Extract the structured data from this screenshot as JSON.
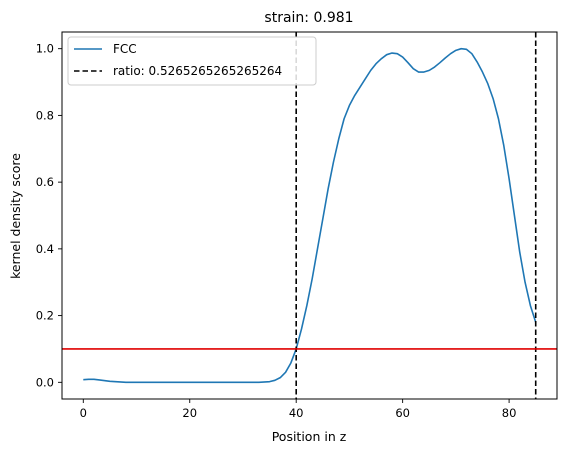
{
  "chart_data": {
    "type": "line",
    "title": "strain: 0.981",
    "xlabel": "Position in z",
    "ylabel": "kernel density score",
    "xlim": [
      -4,
      89
    ],
    "ylim": [
      -0.05,
      1.05
    ],
    "xticks": [
      0,
      20,
      40,
      60,
      80
    ],
    "yticks": [
      0.0,
      0.2,
      0.4,
      0.6,
      0.8,
      1.0
    ],
    "xtick_labels": [
      "0",
      "20",
      "40",
      "60",
      "80"
    ],
    "ytick_labels": [
      "0.0",
      "0.2",
      "0.4",
      "0.6",
      "0.8",
      "1.0"
    ],
    "grid": false,
    "legend_position": "upper-left",
    "series": [
      {
        "name": "FCC",
        "color": "#1f77b4",
        "style": "solid",
        "x": [
          0,
          1,
          2,
          3,
          5,
          8,
          10,
          15,
          20,
          25,
          30,
          33,
          35,
          36,
          37,
          38,
          39,
          40,
          41,
          42,
          43,
          44,
          45,
          46,
          47,
          48,
          49,
          50,
          51,
          52,
          53,
          54,
          55,
          56,
          57,
          58,
          59,
          60,
          61,
          62,
          63,
          64,
          65,
          66,
          67,
          68,
          69,
          70,
          71,
          72,
          73,
          74,
          75,
          76,
          77,
          78,
          79,
          80,
          81,
          82,
          83,
          84,
          85
        ],
        "y": [
          0.008,
          0.009,
          0.009,
          0.007,
          0.003,
          0.0,
          0.0,
          0.0,
          0.0,
          0.0,
          0.0,
          0.0,
          0.002,
          0.006,
          0.014,
          0.03,
          0.058,
          0.1,
          0.16,
          0.23,
          0.31,
          0.4,
          0.49,
          0.58,
          0.66,
          0.73,
          0.79,
          0.83,
          0.86,
          0.885,
          0.91,
          0.935,
          0.955,
          0.97,
          0.982,
          0.987,
          0.985,
          0.975,
          0.958,
          0.94,
          0.93,
          0.93,
          0.935,
          0.945,
          0.958,
          0.972,
          0.985,
          0.995,
          1.0,
          0.998,
          0.985,
          0.96,
          0.93,
          0.895,
          0.85,
          0.79,
          0.71,
          0.61,
          0.5,
          0.39,
          0.3,
          0.23,
          0.18
        ]
      }
    ],
    "vlines": [
      {
        "name": "ratio: 0.5265265265265264",
        "x": [
          40,
          85
        ],
        "color": "#000000",
        "style": "dashed"
      }
    ],
    "hlines": [
      {
        "y": 0.1,
        "color": "#e00000",
        "style": "solid"
      }
    ]
  }
}
